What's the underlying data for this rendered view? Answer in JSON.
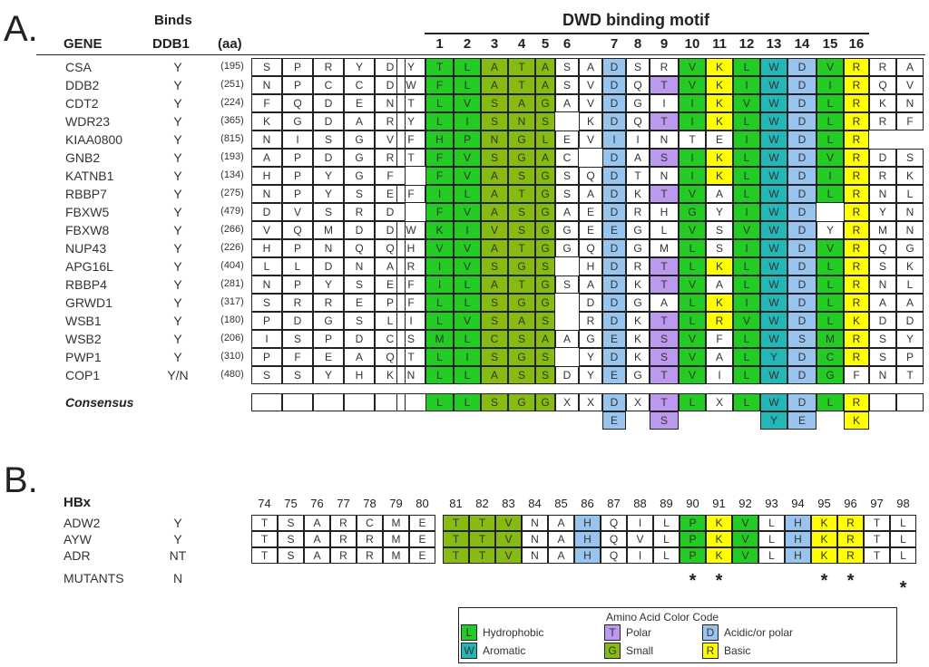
{
  "panelA": {
    "label": "A.",
    "headers": {
      "gene": "GENE",
      "binds_line1": "Binds",
      "binds_line2": "DDB1",
      "aa": "(aa)",
      "motif_title": "DWD binding motif"
    },
    "motif_positions": [
      "1",
      "2",
      "3",
      "4",
      "5",
      "6",
      "7",
      "8",
      "9",
      "10",
      "11",
      "12",
      "13",
      "14",
      "15",
      "16"
    ],
    "rows": [
      {
        "gene": "CSA",
        "binds": "Y",
        "aa": "(195)",
        "pre": [
          "S",
          "P",
          "R",
          "Y",
          "D",
          "Y"
        ],
        "motif": [
          "T",
          "L",
          "A",
          "T",
          "A",
          "S",
          "A",
          "D",
          "S",
          "R",
          "V",
          "K",
          "L",
          "W",
          "D",
          "V",
          "R"
        ],
        "post": [
          "R",
          "A"
        ]
      },
      {
        "gene": "DDB2",
        "binds": "Y",
        "aa": "(251)",
        "pre": [
          "N",
          "P",
          "C",
          "C",
          "D",
          "W"
        ],
        "motif": [
          "F",
          "L",
          "A",
          "T",
          "A",
          "S",
          "V",
          "D",
          "Q",
          "T",
          "V",
          "K",
          "I",
          "W",
          "D",
          "I",
          "R"
        ],
        "post": [
          "Q",
          "V"
        ]
      },
      {
        "gene": "CDT2",
        "binds": "Y",
        "aa": "(224)",
        "pre": [
          "F",
          "Q",
          "D",
          "E",
          "N",
          "T"
        ],
        "motif": [
          "L",
          "V",
          "S",
          "A",
          "G",
          "A",
          "V",
          "D",
          "G",
          "I",
          "I",
          "K",
          "V",
          "W",
          "D",
          "L",
          "R"
        ],
        "post": [
          "K",
          "N"
        ]
      },
      {
        "gene": "WDR23",
        "binds": "Y",
        "aa": "(365)",
        "pre": [
          "K",
          "G",
          "D",
          "A",
          "R",
          "Y"
        ],
        "motif": [
          "L",
          "I",
          "S",
          "N",
          "S",
          "",
          "K",
          "D",
          "Q",
          "T",
          "I",
          "K",
          "L",
          "W",
          "D",
          "L",
          "R"
        ],
        "post": [
          "R",
          "F"
        ]
      },
      {
        "gene": "KIAA0800",
        "binds": "Y",
        "aa": "(815)",
        "pre": [
          "N",
          "I",
          "S",
          "G",
          "V",
          "F"
        ],
        "motif": [
          "H",
          "P",
          "N",
          "G",
          "L",
          "E",
          "V",
          "I",
          "I",
          "N",
          "T",
          "E",
          "I",
          "W",
          "D",
          "L",
          "R"
        ],
        "post": [
          "",
          ""
        ]
      },
      {
        "gene": "GNB2",
        "binds": "Y",
        "aa": "(193)",
        "pre": [
          "A",
          "P",
          "D",
          "G",
          "R",
          "T"
        ],
        "motif": [
          "F",
          "V",
          "S",
          "G",
          "A",
          "C",
          "",
          "D",
          "A",
          "S",
          "I",
          "K",
          "L",
          "W",
          "D",
          "V",
          "R"
        ],
        "post": [
          "D",
          "S"
        ]
      },
      {
        "gene": "KATNB1",
        "binds": "Y",
        "aa": "(134)",
        "pre": [
          "H",
          "P",
          "Y",
          "G",
          "F",
          ""
        ],
        "motif": [
          "F",
          "V",
          "A",
          "S",
          "G",
          "S",
          "Q",
          "D",
          "T",
          "N",
          "I",
          "K",
          "L",
          "W",
          "D",
          "I",
          "R"
        ],
        "post": [
          "R",
          "K"
        ]
      },
      {
        "gene": "RBBP7",
        "binds": "Y",
        "aa": "(275)",
        "pre": [
          "N",
          "P",
          "Y",
          "S",
          "E",
          "F"
        ],
        "motif": [
          "I",
          "L",
          "A",
          "T",
          "G",
          "S",
          "A",
          "D",
          "K",
          "T",
          "V",
          "A",
          "L",
          "W",
          "D",
          "L",
          "R"
        ],
        "post": [
          "N",
          "L"
        ]
      },
      {
        "gene": "FBXW5",
        "binds": "Y",
        "aa": "(479)",
        "pre": [
          "D",
          "V",
          "S",
          "R",
          "D",
          ""
        ],
        "motif": [
          "F",
          "V",
          "A",
          "S",
          "G",
          "A",
          "E",
          "D",
          "R",
          "H",
          "G",
          "Y",
          "I",
          "W",
          "D",
          "",
          "R"
        ],
        "post": [
          "Y",
          "N"
        ]
      },
      {
        "gene": "FBXW8",
        "binds": "Y",
        "aa": "(266)",
        "pre": [
          "V",
          "Q",
          "M",
          "D",
          "D",
          "W"
        ],
        "motif": [
          "K",
          "I",
          "V",
          "S",
          "G",
          "G",
          "E",
          "E",
          "G",
          "L",
          "V",
          "S",
          "V",
          "W",
          "D",
          "Y",
          "R"
        ],
        "post": [
          "M",
          "N"
        ]
      },
      {
        "gene": "NUP43",
        "binds": "Y",
        "aa": "(226)",
        "pre": [
          "H",
          "P",
          "N",
          "Q",
          "Q",
          "H"
        ],
        "motif": [
          "V",
          "V",
          "A",
          "T",
          "G",
          "G",
          "Q",
          "D",
          "G",
          "M",
          "L",
          "S",
          "I",
          "W",
          "D",
          "V",
          "R"
        ],
        "post": [
          "Q",
          "G"
        ]
      },
      {
        "gene": "APG16L",
        "binds": "Y",
        "aa": "(404)",
        "pre": [
          "L",
          "L",
          "D",
          "N",
          "A",
          "R"
        ],
        "motif": [
          "I",
          "V",
          "S",
          "G",
          "S",
          "",
          "H",
          "D",
          "R",
          "T",
          "L",
          "K",
          "L",
          "W",
          "D",
          "L",
          "R"
        ],
        "post": [
          "S",
          "K"
        ]
      },
      {
        "gene": "RBBP4",
        "binds": "Y",
        "aa": "(281)",
        "pre": [
          "N",
          "P",
          "Y",
          "S",
          "E",
          "F"
        ],
        "motif": [
          "I",
          "L",
          "A",
          "T",
          "G",
          "S",
          "A",
          "D",
          "K",
          "T",
          "V",
          "A",
          "L",
          "W",
          "D",
          "L",
          "R"
        ],
        "post": [
          "N",
          "L"
        ]
      },
      {
        "gene": "GRWD1",
        "binds": "Y",
        "aa": "(317)",
        "pre": [
          "S",
          "R",
          "R",
          "E",
          "P",
          "F"
        ],
        "motif": [
          "L",
          "L",
          "S",
          "G",
          "G",
          "",
          "D",
          "D",
          "G",
          "A",
          "L",
          "K",
          "I",
          "W",
          "D",
          "L",
          "R"
        ],
        "post": [
          "A",
          "A"
        ]
      },
      {
        "gene": "WSB1",
        "binds": "Y",
        "aa": "(180)",
        "pre": [
          "P",
          "D",
          "G",
          "S",
          "L",
          "I"
        ],
        "motif": [
          "L",
          "V",
          "S",
          "A",
          "S",
          "",
          "R",
          "D",
          "K",
          "T",
          "L",
          "R",
          "V",
          "W",
          "D",
          "L",
          "K"
        ],
        "post": [
          "D",
          "D"
        ]
      },
      {
        "gene": "WSB2",
        "binds": "Y",
        "aa": "(206)",
        "pre": [
          "I",
          "S",
          "P",
          "D",
          "C",
          "S"
        ],
        "motif": [
          "M",
          "L",
          "C",
          "S",
          "A",
          "A",
          "G",
          "E",
          "K",
          "S",
          "V",
          "F",
          "L",
          "W",
          "S",
          "M",
          "R"
        ],
        "post": [
          "S",
          "Y"
        ]
      },
      {
        "gene": "PWP1",
        "binds": "Y",
        "aa": "(310)",
        "pre": [
          "P",
          "F",
          "E",
          "A",
          "Q",
          "T"
        ],
        "motif": [
          "L",
          "I",
          "S",
          "G",
          "S",
          "",
          "Y",
          "D",
          "K",
          "S",
          "V",
          "A",
          "L",
          "Y",
          "D",
          "C",
          "R"
        ],
        "post": [
          "S",
          "P"
        ]
      },
      {
        "gene": "COP1",
        "binds": "Y/N",
        "aa": "(480)",
        "pre": [
          "S",
          "S",
          "Y",
          "H",
          "K",
          "N"
        ],
        "motif": [
          "L",
          "L",
          "A",
          "S",
          "S",
          "D",
          "Y",
          "E",
          "G",
          "T",
          "V",
          "I",
          "L",
          "W",
          "D",
          "G",
          "F"
        ],
        "post": [
          "N",
          "T"
        ]
      }
    ],
    "consensus": {
      "label": "Consensus",
      "row1": [
        "L",
        "L",
        "S",
        "G",
        "G",
        "X",
        "X",
        "D",
        "X",
        "T",
        "L",
        "X",
        "L",
        "W",
        "D",
        "L",
        "R"
      ],
      "row2": {
        "7": "E",
        "9": "S",
        "13": "Y",
        "14": "E",
        "16": "K"
      }
    }
  },
  "panelB": {
    "label": "B.",
    "title": "HBx",
    "positions": [
      "74",
      "75",
      "76",
      "77",
      "78",
      "79",
      "80",
      "81",
      "82",
      "83",
      "84",
      "85",
      "86",
      "87",
      "88",
      "89",
      "90",
      "91",
      "92",
      "93",
      "94",
      "95",
      "96",
      "97",
      "98"
    ],
    "rows": [
      {
        "name": "ADW2",
        "binds": "Y",
        "seq": [
          "T",
          "S",
          "A",
          "R",
          "C",
          "M",
          "E",
          "T",
          "T",
          "V",
          "N",
          "A",
          "H",
          "Q",
          "I",
          "L",
          "P",
          "K",
          "V",
          "L",
          "H",
          "K",
          "R",
          "T",
          "L"
        ]
      },
      {
        "name": "AYW",
        "binds": "Y",
        "seq": [
          "T",
          "S",
          "A",
          "R",
          "R",
          "M",
          "E",
          "T",
          "T",
          "V",
          "N",
          "A",
          "H",
          "Q",
          "V",
          "L",
          "P",
          "K",
          "V",
          "L",
          "H",
          "K",
          "R",
          "T",
          "L"
        ]
      },
      {
        "name": "ADR",
        "binds": "NT",
        "seq": [
          "T",
          "S",
          "A",
          "R",
          "R",
          "M",
          "E",
          "T",
          "T",
          "V",
          "N",
          "A",
          "H",
          "Q",
          "I",
          "L",
          "P",
          "K",
          "V",
          "L",
          "H",
          "K",
          "R",
          "T",
          "L"
        ]
      }
    ],
    "mutants": {
      "name": "MUTANTS",
      "binds": "N",
      "star": "*",
      "positions": [
        "90",
        "91",
        "95",
        "96",
        "98"
      ]
    }
  },
  "legend": {
    "title": "Amino Acid Color Code",
    "items": [
      {
        "letter": "L",
        "label": "Hydrophobic",
        "color": "#22cc22"
      },
      {
        "letter": "T",
        "label": "Polar",
        "color": "#bb99ee"
      },
      {
        "letter": "D",
        "label": "Acidic/or polar",
        "color": "#99c4ee"
      },
      {
        "letter": "W",
        "label": "Aromatic",
        "color": "#22b8b8"
      },
      {
        "letter": "G",
        "label": "Small",
        "color": "#88bb11"
      },
      {
        "letter": "R",
        "label": "Basic",
        "color": "#ffff00"
      }
    ]
  },
  "colors": {
    "hydrophobic": "#22cc22",
    "small": "#88bb11",
    "acidic": "#99c4ee",
    "polar": "#bb99ee",
    "basic": "#ffff00",
    "aromatic": "#22b8b8"
  }
}
